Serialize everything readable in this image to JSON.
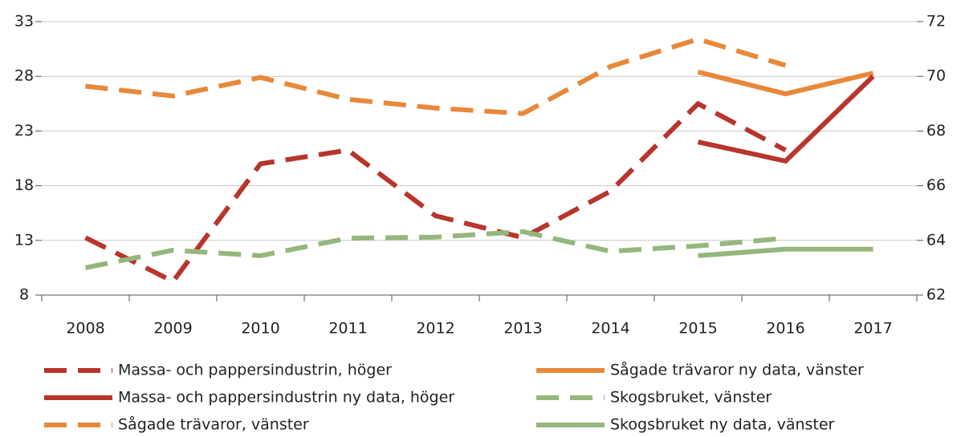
{
  "chart_data": {
    "type": "line",
    "categories": [
      "2008",
      "2009",
      "2010",
      "2011",
      "2012",
      "2013",
      "2014",
      "2015",
      "2016",
      "2017"
    ],
    "ylim": [
      8,
      33
    ],
    "yticks": [
      8,
      13,
      18,
      23,
      28,
      33
    ],
    "y2lim": [
      62,
      72
    ],
    "y2ticks": [
      62,
      64,
      66,
      68,
      70,
      72
    ],
    "grid": true,
    "series": [
      {
        "name": "Massa- och pappersindustrin, höger",
        "color": "#b8352b",
        "style": "dashed",
        "axis": "y2",
        "values": [
          64.1,
          62.5,
          66.8,
          67.3,
          64.9,
          64.1,
          65.8,
          69.0,
          67.3,
          null
        ]
      },
      {
        "name": "Sågade trävaror ny data, vänster",
        "color": "#e8883a",
        "style": "solid",
        "values": [
          null,
          null,
          null,
          null,
          null,
          null,
          null,
          28.4,
          26.4,
          28.3
        ]
      },
      {
        "name": "Massa- och pappersindustrin ny data, höger",
        "color": "#b8352b",
        "style": "solid",
        "axis": "y2",
        "values": [
          null,
          null,
          null,
          null,
          null,
          null,
          null,
          67.6,
          66.9,
          70.0
        ]
      },
      {
        "name": "Skogsbruket, vänster",
        "color": "#94b77c",
        "style": "dashed",
        "values": [
          10.5,
          12.1,
          11.6,
          13.2,
          13.3,
          13.8,
          12.0,
          12.5,
          13.2,
          null
        ]
      },
      {
        "name": "Sågade trävaror, vänster",
        "color": "#e8883a",
        "style": "dashed",
        "values": [
          27.1,
          26.2,
          27.9,
          25.9,
          25.1,
          24.6,
          28.9,
          31.4,
          29.0,
          null
        ]
      },
      {
        "name": "Skogsbruket ny data, vänster",
        "color": "#94b77c",
        "style": "solid",
        "values": [
          null,
          null,
          null,
          null,
          null,
          null,
          null,
          11.6,
          12.2,
          12.2
        ]
      }
    ]
  }
}
